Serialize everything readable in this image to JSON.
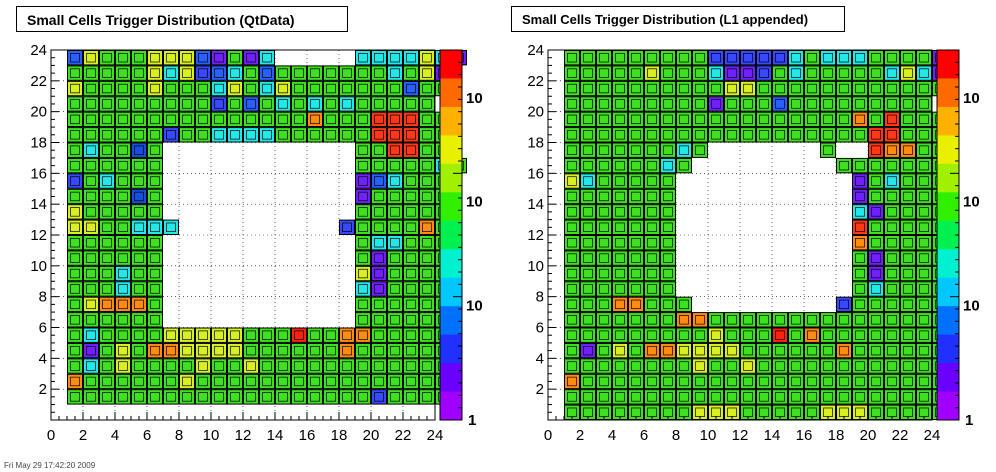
{
  "chart_data": [
    {
      "type": "heatmap",
      "title": "Small Cells Trigger Distribution (QtData)",
      "xlim": [
        0,
        24
      ],
      "ylim": [
        0,
        24
      ],
      "x_ticks": [
        "0",
        "2",
        "4",
        "6",
        "8",
        "10",
        "12",
        "14",
        "16",
        "18",
        "20",
        "22",
        "24"
      ],
      "y_ticks": [
        "2",
        "4",
        "6",
        "8",
        "10",
        "12",
        "14",
        "16",
        "18",
        "20",
        "22",
        "24"
      ],
      "colorbar_labels": [
        "1",
        "10",
        "10",
        "10"
      ],
      "grid": true,
      "hole": {
        "x": [
          5,
          17
        ],
        "y": [
          6,
          17
        ]
      },
      "rows": [
        {
          "y": 23,
          "levels": "dabbbaaadfbfc.....ccccacf"
        },
        {
          "y": 22,
          "levels": "bbbbbacaedcbdbbbbbbbcbaf"
        },
        {
          "y": 21,
          "levels": "abbbbabbbcabcabbbbbbbdbb"
        },
        {
          "y": 20,
          "levels": "bbbbbbbbbebdbcbcbcbbbbb."
        },
        {
          "y": 19,
          "levels": "bbbbbbbbbbbbbbbhbbbjjjbb"
        },
        {
          "y": 18,
          "levels": "bbbbbbebbccccbbbbbbjjjbb"
        },
        {
          "y": 17,
          "levels": "bcbbgb............bbjjbb"
        },
        {
          "y": 16,
          "levels": "bbbbbb............bbbbbcb"
        },
        {
          "y": 15,
          "levels": "ebcbbb............fdcbbb"
        },
        {
          "y": 14,
          "levels": "bbbbgb............fbbbbb"
        },
        {
          "y": 13,
          "levels": "abbbbb............bbbbbb"
        },
        {
          "y": 12,
          "levels": "aabbccc..........ebbbbhb"
        },
        {
          "y": 11,
          "levels": "bbbbbb............bccbbb"
        },
        {
          "y": 10,
          "levels": "bbbbbb............bfbbbb"
        },
        {
          "y": 9,
          "levels": "bbbcbb............afbbbb"
        },
        {
          "y": 8,
          "levels": "bbbcbb............cfbbbb"
        },
        {
          "y": 7,
          "levels": "bahhhb............bbbbbb"
        },
        {
          "y": 6,
          "levels": "bbbbbb............bbbbbb"
        },
        {
          "y": 5,
          "levels": "bcbbbbaaaaabbbibbhhbbbbb"
        },
        {
          "y": 4,
          "levels": "bfbabhhaaaabbbbbbhbbbbbb"
        },
        {
          "y": 3,
          "levels": "bcbabbbbabbabbbbbbbbbbbb"
        },
        {
          "y": 2,
          "levels": "hbbbbbbabbbbbbbbbbbbbbbb"
        },
        {
          "y": 1,
          "levels": "bbbbbbbbbbbbbbbbbbbebbbb"
        }
      ]
    },
    {
      "type": "heatmap",
      "title": "Small Cells Trigger Distribution (L1 appended)",
      "xlim": [
        0,
        24
      ],
      "ylim": [
        0,
        24
      ],
      "x_ticks": [
        "0",
        "2",
        "4",
        "6",
        "8",
        "10",
        "12",
        "14",
        "16",
        "18",
        "20",
        "22",
        "24"
      ],
      "y_ticks": [
        "2",
        "4",
        "6",
        "8",
        "10",
        "12",
        "14",
        "16",
        "18",
        "20",
        "22",
        "24"
      ],
      "colorbar_labels": [
        "1",
        "10",
        "10",
        "10"
      ],
      "grid": true,
      "hole": {
        "x": [
          5,
          17
        ],
        "y": [
          7,
          17
        ]
      },
      "rows": [
        {
          "y": 23,
          "levels": "bbbbbbbbbeeeeecbcccbbbbf"
        },
        {
          "y": 22,
          "levels": "bbbbbabbbcffebcbbbbbcacf"
        },
        {
          "y": 21,
          "levels": "bbbbbbbbbbaabbbbbbbbbbbb"
        },
        {
          "y": 20,
          "levels": "bbbbbbbbbfbbbdbbbbbbbbb."
        },
        {
          "y": 19,
          "levels": "bbbbbbbbbbbbbbbbbbhbjbbb"
        },
        {
          "y": 18,
          "levels": "bbbbbbbbbbbbbbbbbbbjjbbb"
        },
        {
          "y": 17,
          "levels": "bbbbbbbcb.......b..jhhbb"
        },
        {
          "y": 16,
          "levels": "bbbbbbcb.........bbbbbbb"
        },
        {
          "y": 15,
          "levels": "acbbbbb...........fbcbbb"
        },
        {
          "y": 14,
          "levels": "bbbbbbb...........fbbbbb"
        },
        {
          "y": 13,
          "levels": "bbbbbbb...........cfbbbb"
        },
        {
          "y": 12,
          "levels": "bbbbbbb...........jbbbbb"
        },
        {
          "y": 11,
          "levels": "bbbbbbb...........hbbbbb"
        },
        {
          "y": 10,
          "levels": "bbbbbbb...........bfbbbb"
        },
        {
          "y": 9,
          "levels": "bbbbbbb...........bfbbbb"
        },
        {
          "y": 8,
          "levels": "bbbbbbb...........bcbbbb"
        },
        {
          "y": 7,
          "levels": "bbbhhbbb.........ebbbbbb"
        },
        {
          "y": 6,
          "levels": "bbbbbbbhhbbbbbbbbbbbbbbb"
        },
        {
          "y": 5,
          "levels": "bbbbbbbbbabbbibhbbbbbbbb"
        },
        {
          "y": 4,
          "levels": "bfbabhhaaaabbbbbbhbbbbbb"
        },
        {
          "y": 3,
          "levels": "bbbbbbbbabbabbbbbbbbbbbb"
        },
        {
          "y": 2,
          "levels": "hbbbbbbbbbbbbbbbbbbbbbbb"
        },
        {
          "y": 1,
          "levels": "bbbbbbbbbbbbbbbbbbbbbbbb"
        },
        {
          "y": 0,
          "levels": "bbbbbbbbaaabbbbbaaabbbbb"
        }
      ]
    }
  ],
  "level_colors": {
    "a": "#d8f020",
    "b": "#3ee020",
    "c": "#22e8e8",
    "d": "#2860ff",
    "e": "#3848ff",
    "f": "#7020ff",
    "g": "#1450e0",
    "h": "#ff8c10",
    "i": "#ff2010",
    "j": "#ff3818"
  },
  "colorbar_stops": [
    "#ff0000",
    "#ff6a00",
    "#ffb000",
    "#e8f000",
    "#a0f000",
    "#30f000",
    "#00f050",
    "#00f0d0",
    "#00c8ff",
    "#0070ff",
    "#2030ff",
    "#6a00ff",
    "#a000ff"
  ],
  "footer": "Fri May 29 17:42:20 2009"
}
